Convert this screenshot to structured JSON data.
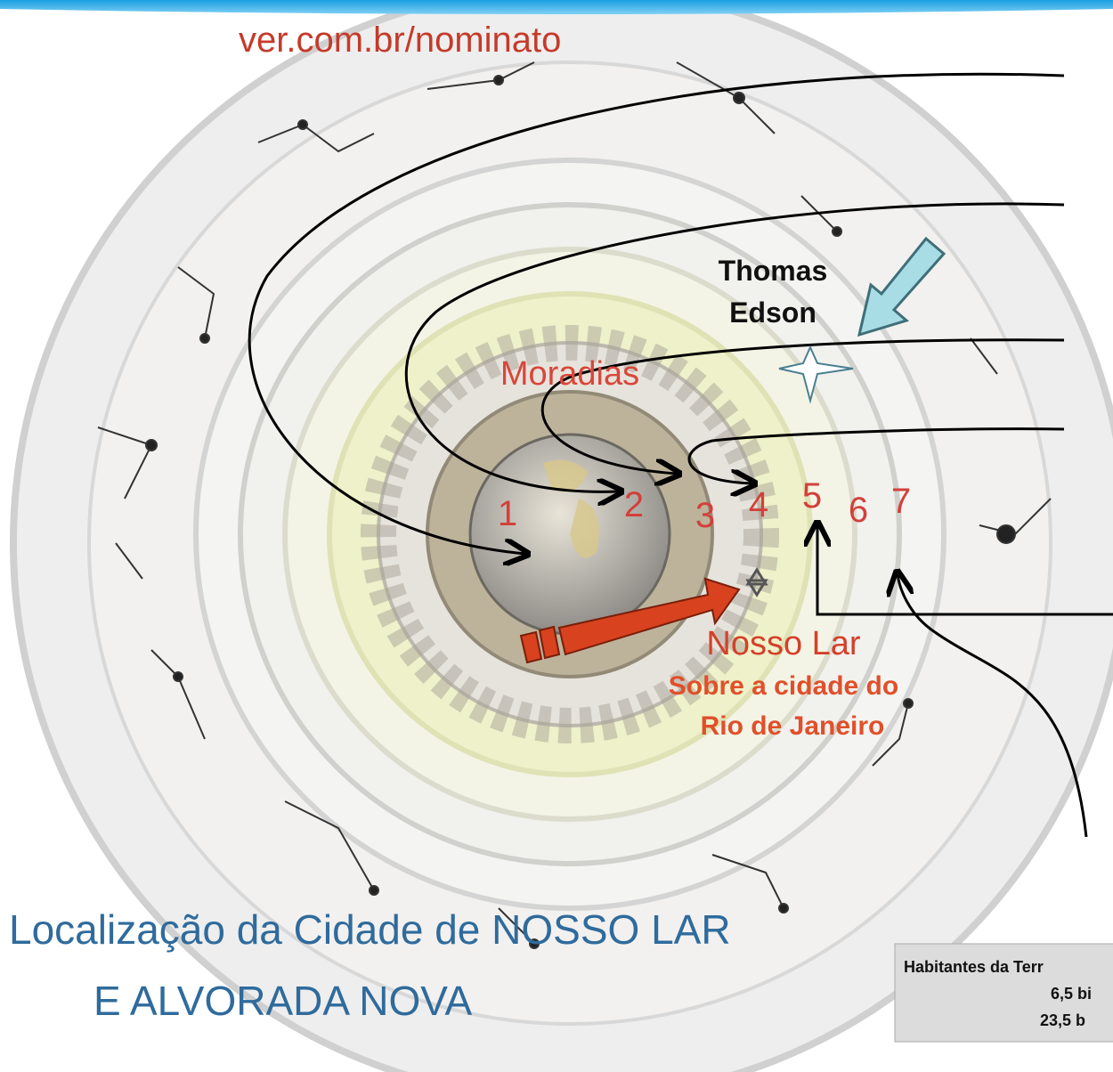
{
  "url_fragment": "ver.com.br/nominato",
  "labels": {
    "thomas": "Thomas",
    "edson": "Edson",
    "moradias": "Moradias",
    "nosso_lar": "Nosso Lar",
    "sobre": "Sobre a cidade do",
    "rio": "Rio de Janeiro"
  },
  "ring_numbers": [
    "1",
    "2",
    "3",
    "4",
    "5",
    "6",
    "7"
  ],
  "title_lines": [
    "Localização da Cidade de NOSSO LAR",
    "E ALVORADA NOVA"
  ],
  "info_box": {
    "lines": [
      "Habitantes da Terr",
      "6,5 bi",
      "23,5 b"
    ]
  }
}
